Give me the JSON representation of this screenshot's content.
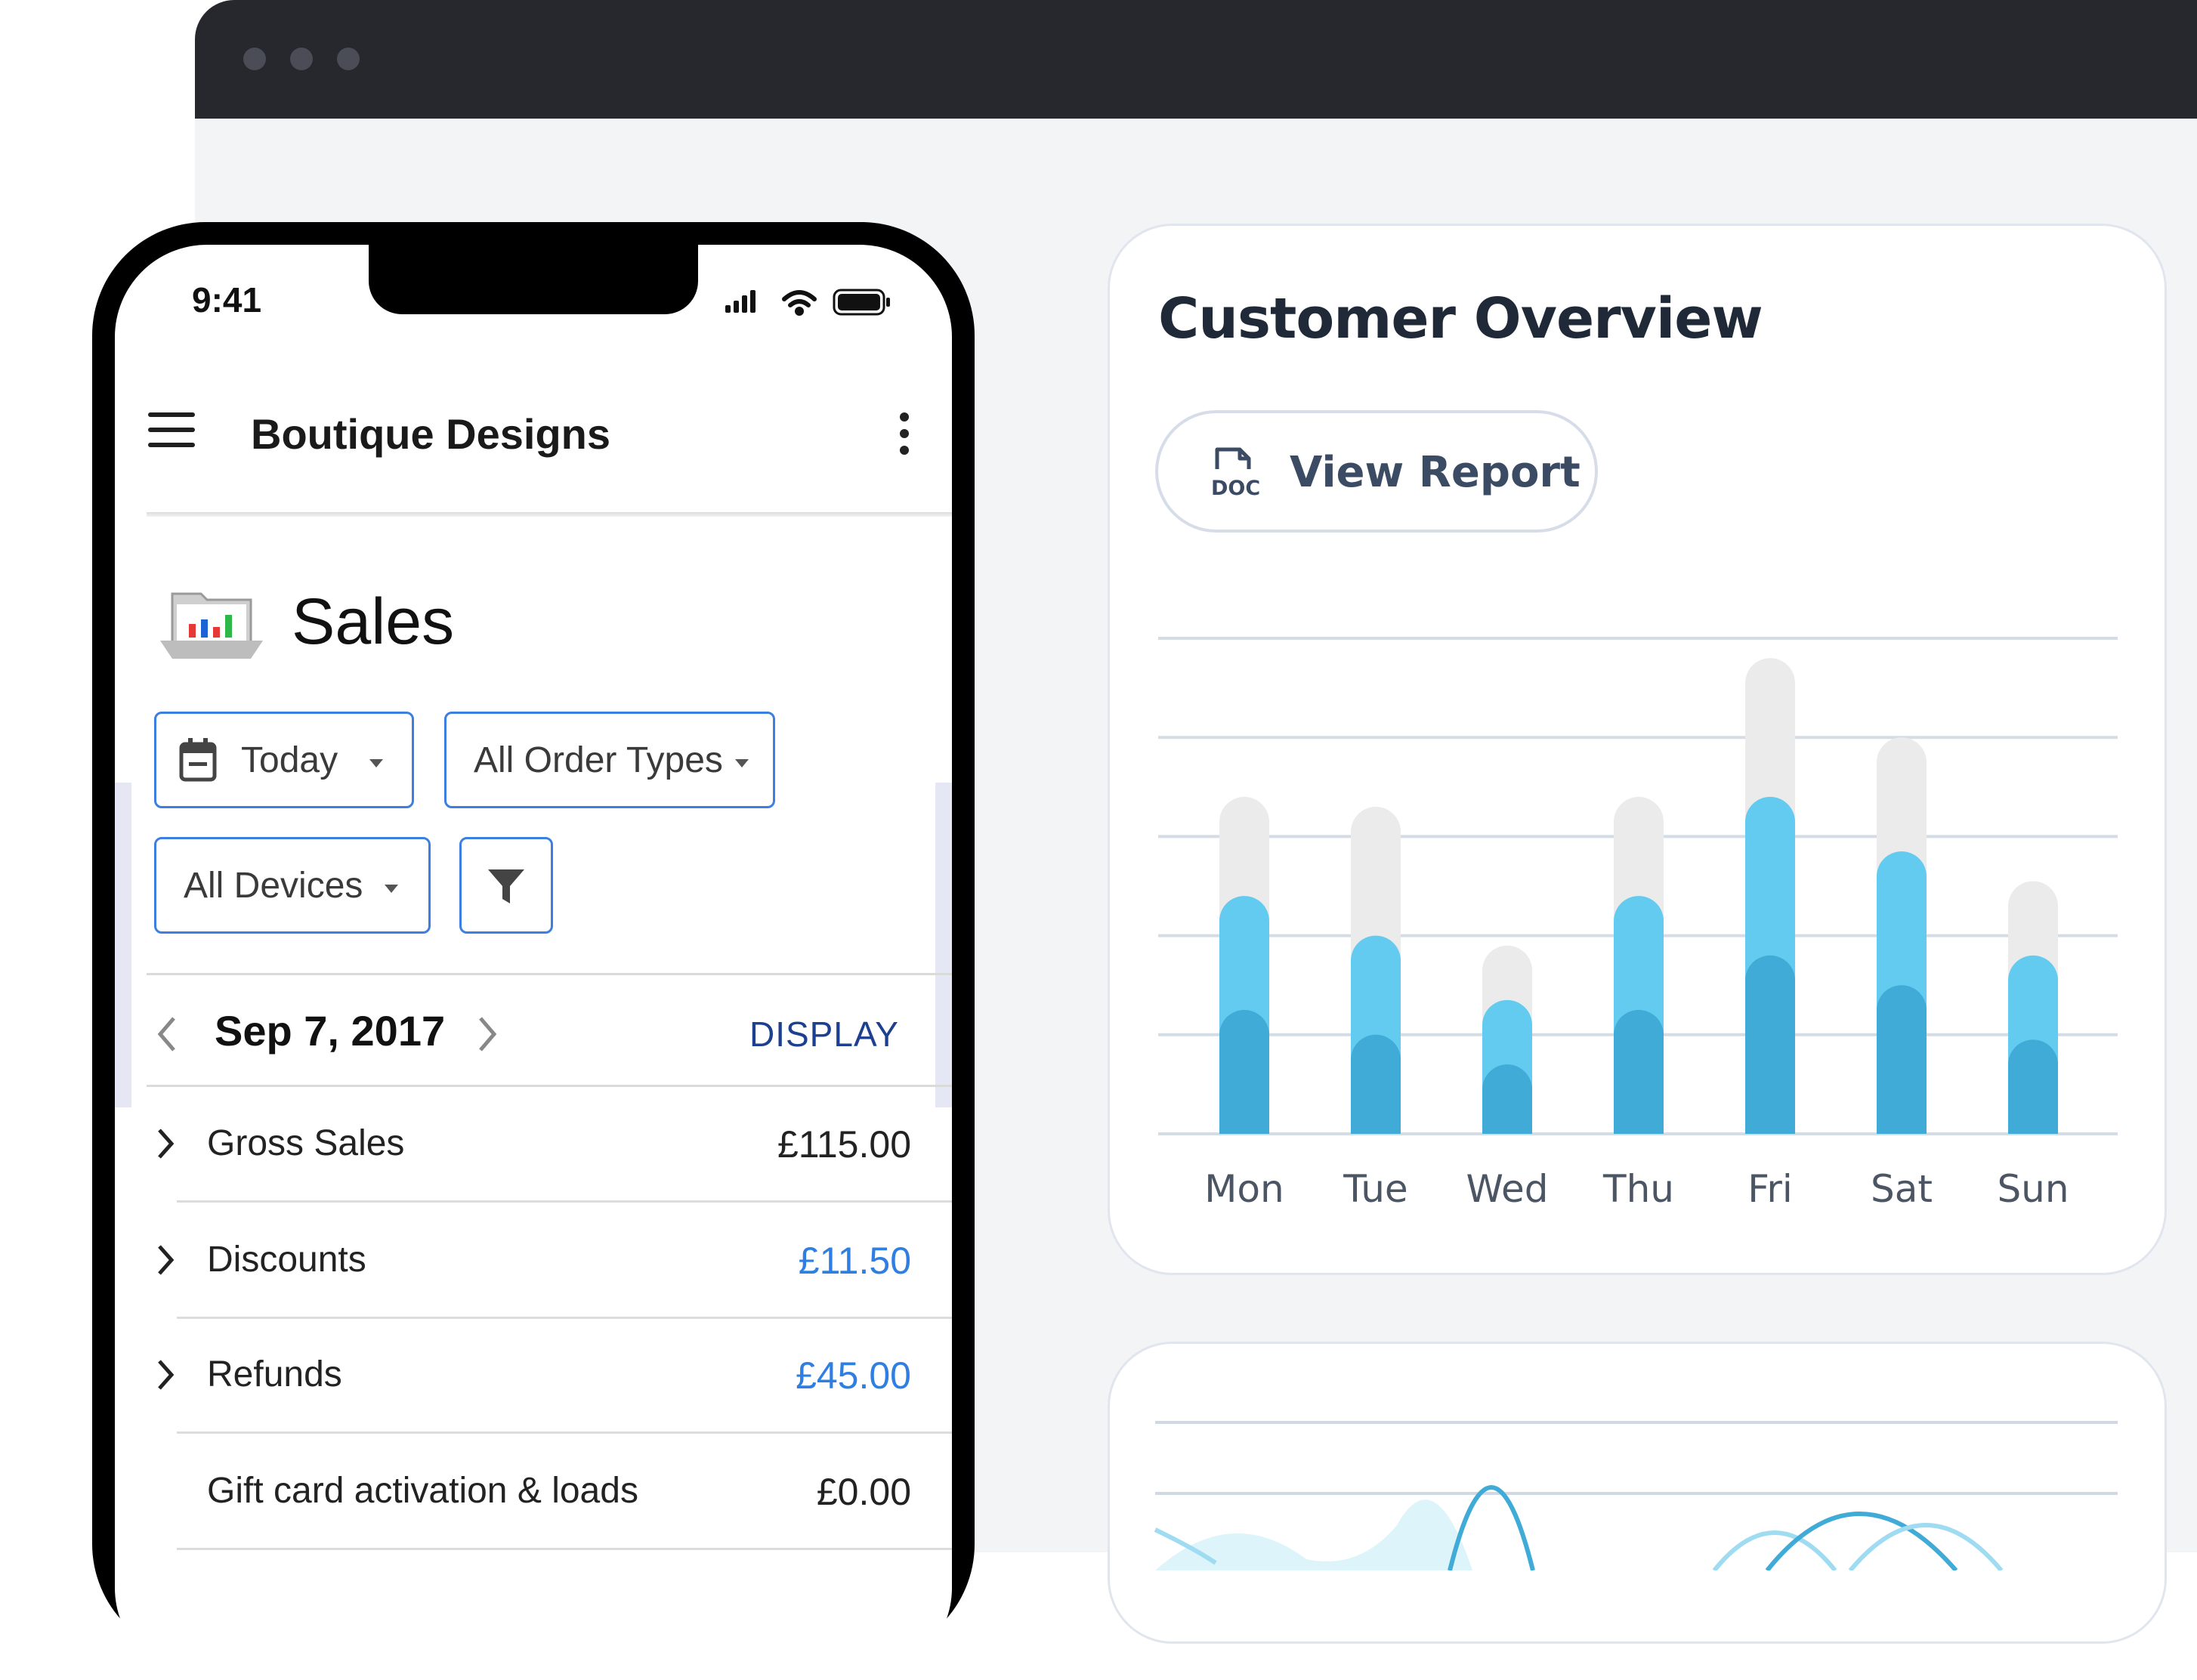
{
  "colors": {
    "chart_dark": "#3fabd6",
    "chart_mid": "#62cbef",
    "chart_light": "#ebebeb",
    "accent_blue": "#2f7fe2",
    "link_blue": "#1c3f8f"
  },
  "phone": {
    "status": {
      "time": "9:41"
    },
    "appbar": {
      "title": "Boutique Designs",
      "menu_icon": "hamburger-icon",
      "more_icon": "kebab-icon"
    },
    "page": {
      "title": "Sales",
      "icon": "sales-folder-icon"
    },
    "filters": {
      "date": "Today",
      "order_types": "All Order Types",
      "devices": "All Devices"
    },
    "date_nav": {
      "date": "Sep 7, 2017",
      "display": "DISPLAY"
    },
    "rows": [
      {
        "label": "Gross Sales",
        "value": "£115.00",
        "expandable": true,
        "highlight": false
      },
      {
        "label": "Discounts",
        "value": "£11.50",
        "expandable": true,
        "highlight": true
      },
      {
        "label": "Refunds",
        "value": "£45.00",
        "expandable": true,
        "highlight": true
      },
      {
        "label": "Gift card activation & loads",
        "value": "£0.00",
        "expandable": false,
        "highlight": false
      }
    ]
  },
  "overview": {
    "title": "Customer Overview",
    "button": {
      "label": "View Report",
      "icon": "doc-icon"
    }
  },
  "chart_data": {
    "type": "bar",
    "categories": [
      "Mon",
      "Tue",
      "Wed",
      "Thu",
      "Fri",
      "Sat",
      "Sun"
    ],
    "ylim": [
      0,
      5
    ],
    "grid": true,
    "stacked": true,
    "series": [
      {
        "values": [
          1.25,
          1.0,
          0.7,
          1.25,
          1.8,
          1.5,
          0.95
        ]
      },
      {
        "values": [
          1.15,
          1.0,
          0.65,
          1.15,
          1.6,
          1.35,
          0.85
        ]
      },
      {
        "values": [
          1.0,
          1.3,
          0.55,
          1.0,
          1.4,
          1.15,
          0.75
        ]
      }
    ]
  }
}
